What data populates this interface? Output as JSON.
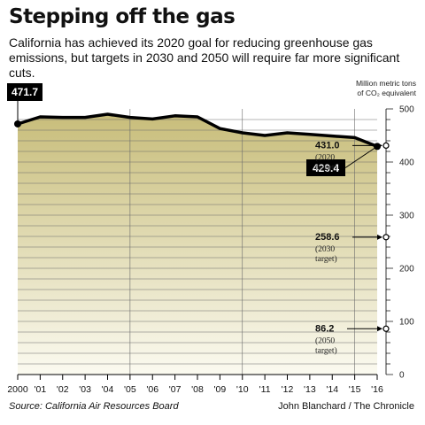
{
  "title": "Stepping off the gas",
  "subtitle": "California has achieved its 2020 goal for reducing greenhouse gas emissions, but targets in 2030 and 2050 will require far more significant cuts.",
  "source": "Source: California Air Resources Board",
  "credit": "John Blanchard / The Chronicle",
  "chart_data": {
    "type": "area",
    "x": [
      2000,
      2001,
      2002,
      2003,
      2004,
      2005,
      2006,
      2007,
      2008,
      2009,
      2010,
      2011,
      2012,
      2013,
      2014,
      2015,
      2016
    ],
    "x_tick_labels": [
      "2000",
      "'01",
      "'02",
      "'03",
      "'04",
      "'05",
      "'06",
      "'07",
      "'08",
      "'09",
      "'10",
      "'11",
      "'12",
      "'13",
      "'14",
      "'15",
      "'16"
    ],
    "values": [
      471.7,
      485,
      484,
      484,
      490,
      484,
      481,
      487,
      485,
      463,
      455,
      450,
      455,
      452,
      449,
      446,
      429.4
    ],
    "ylim": [
      0,
      500
    ],
    "y_ticks": [
      0,
      100,
      200,
      300,
      400,
      500
    ],
    "ylabel_lines": [
      "Million metric tons",
      "of CO₂ equivalent"
    ],
    "callouts": [
      {
        "label": "471.7",
        "year": 2000,
        "value": 471.7
      },
      {
        "label": "429.4",
        "year": 2016,
        "value": 429.4
      }
    ],
    "targets": [
      {
        "value": 431.0,
        "label": "431.0",
        "sub1": "(2020",
        "sub2": "target)"
      },
      {
        "value": 258.6,
        "label": "258.6",
        "sub1": "(2030",
        "sub2": "target)"
      },
      {
        "value": 86.2,
        "label": "86.2",
        "sub1": "(2050",
        "sub2": "target)"
      }
    ],
    "colors": {
      "fill_top": "#c8bd7a",
      "fill_bottom": "#fbfaf0",
      "line": "#000000",
      "callout_bg": "#000000"
    }
  }
}
